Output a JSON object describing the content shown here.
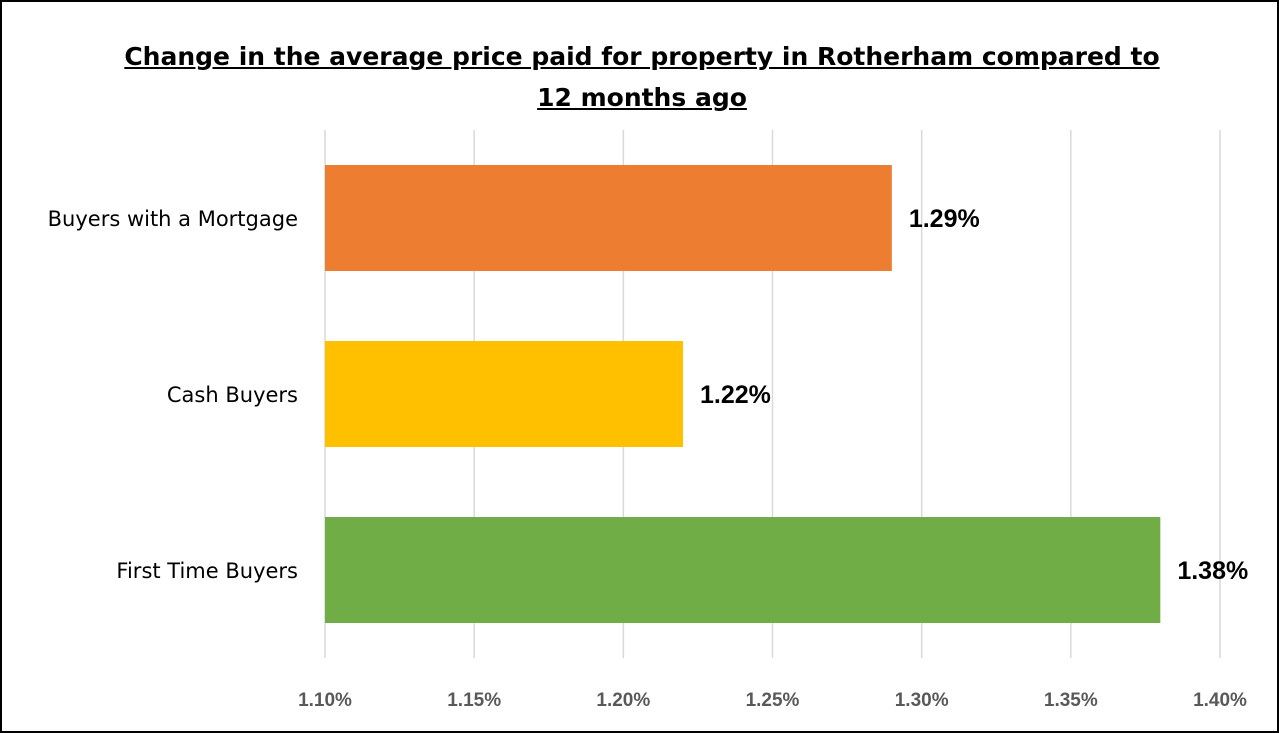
{
  "chart_data": {
    "type": "bar",
    "orientation": "horizontal",
    "title": "Change in the average price paid for property in Rotherham compared to 12 months ago",
    "title_lines": [
      "Change in the average price paid for property in Rotherham compared to",
      "12 months ago"
    ],
    "categories": [
      "Buyers with a Mortgage",
      "Cash Buyers",
      "First Time Buyers"
    ],
    "values": [
      1.29,
      1.22,
      1.38
    ],
    "data_labels": [
      "1.29%",
      "1.22%",
      "1.38%"
    ],
    "colors": [
      "#ED7D31",
      "#FFC000",
      "#70AD47"
    ],
    "xlim": [
      1.1,
      1.4
    ],
    "x_ticks": [
      1.1,
      1.15,
      1.2,
      1.25,
      1.3,
      1.35,
      1.4
    ],
    "x_tick_labels": [
      "1.10%",
      "1.15%",
      "1.20%",
      "1.25%",
      "1.30%",
      "1.35%",
      "1.40%"
    ],
    "xlabel": "",
    "ylabel": "",
    "grid": "vertical",
    "legend": "none"
  }
}
